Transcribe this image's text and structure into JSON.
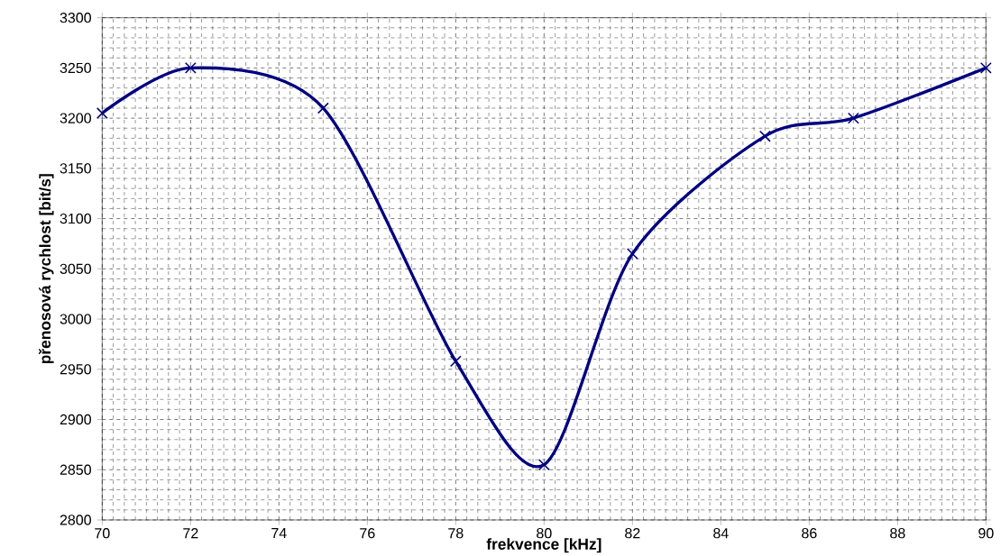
{
  "chart_data": {
    "type": "line",
    "xlabel": "frekvence [kHz]",
    "ylabel": "přenosová rychlost [bit/s]",
    "x": [
      70,
      72,
      75,
      78,
      80,
      82,
      85,
      87,
      90
    ],
    "series": [
      {
        "color": "#000080",
        "values": [
          3205,
          3250,
          3210,
          2958,
          2855,
          3065,
          3182,
          3200,
          3250
        ]
      }
    ],
    "xlim": [
      70,
      90
    ],
    "xticks": [
      70,
      72,
      74,
      76,
      78,
      80,
      82,
      84,
      86,
      88,
      90
    ],
    "ylim": [
      2800,
      3300
    ],
    "yticks": [
      2800,
      2850,
      2900,
      2950,
      3000,
      3050,
      3100,
      3150,
      3200,
      3250,
      3300
    ],
    "grid": true,
    "marker": "cross",
    "line_style": "solid"
  }
}
